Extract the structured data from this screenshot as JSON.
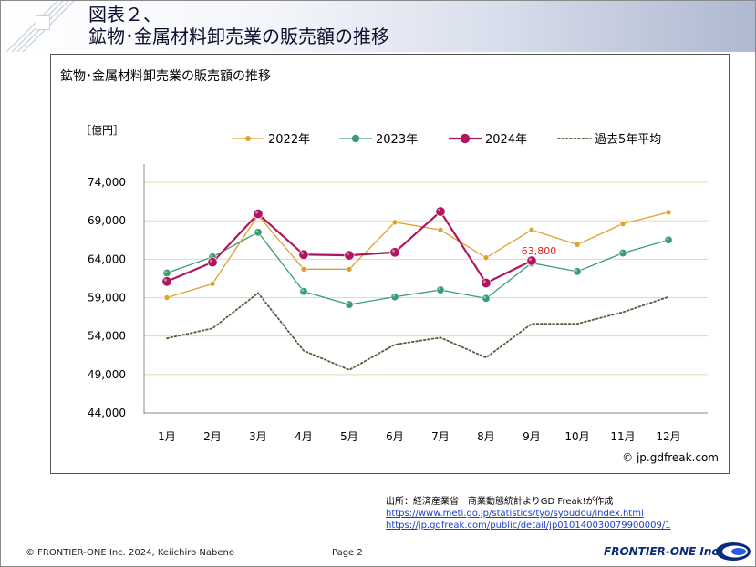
{
  "header": {
    "line1": "図表２、",
    "line2": "鉱物･金属材料卸売業の販売額の推移"
  },
  "chart_data": {
    "type": "line",
    "title": "鉱物･金属材料卸売業の販売額の推移",
    "ylabel": "［億円］",
    "xlabel": "",
    "ylim": [
      44000,
      74000
    ],
    "yticks": [
      44000,
      49000,
      54000,
      59000,
      64000,
      69000,
      74000
    ],
    "ytick_labels": [
      "44,000",
      "49,000",
      "54,000",
      "59,000",
      "64,000",
      "69,000",
      "74,000"
    ],
    "categories": [
      "1月",
      "2月",
      "3月",
      "4月",
      "5月",
      "6月",
      "7月",
      "8月",
      "9月",
      "10月",
      "11月",
      "12月"
    ],
    "grid": "horizontal",
    "legend_position": "top",
    "series": [
      {
        "name": "2022年",
        "color": "#e0a02c",
        "style": "line-marker-small",
        "values": [
          59000,
          60800,
          69700,
          62700,
          62700,
          68800,
          67800,
          64200,
          67800,
          65900,
          68600,
          70100
        ]
      },
      {
        "name": "2023年",
        "color": "#3a9e74",
        "style": "line-marker-medium",
        "values": [
          62200,
          64300,
          67500,
          59800,
          58100,
          59100,
          60000,
          58900,
          63500,
          62400,
          64800,
          66500
        ]
      },
      {
        "name": "2024年",
        "color": "#b01560",
        "style": "line-marker-large",
        "values": [
          61100,
          63600,
          69900,
          64600,
          64500,
          64900,
          70200,
          60900,
          63800,
          null,
          null,
          null
        ]
      },
      {
        "name": "過去5年平均",
        "color": "#5a5a3c",
        "style": "dotted",
        "values": [
          53700,
          55000,
          59600,
          52100,
          49600,
          52900,
          53800,
          51200,
          55600,
          55600,
          57100,
          59100
        ]
      }
    ],
    "annotation": {
      "text": "63,800",
      "color": "#e02020"
    },
    "credit": "© jp.gdfreak.com"
  },
  "source": {
    "line1": "出所：経済産業省　商業動態統計よりGD Freak!が作成",
    "url1": "https://www.meti.go.jp/statistics/tyo/syoudou/index.html",
    "url2": "https://jp.gdfreak.com/public/detail/jp010140030079900009/1"
  },
  "footer": {
    "copyright": "© FRONTIER-ONE Inc. 2024,  Keiichiro  Nabeno",
    "page": "Page 2",
    "logo": "FRONTIER-ONE Inc."
  }
}
